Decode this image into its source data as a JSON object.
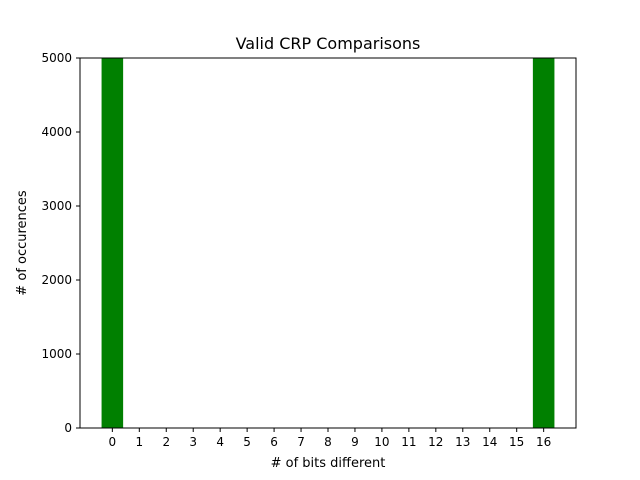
{
  "chart_data": {
    "type": "bar",
    "title": "Valid CRP Comparisons",
    "xlabel": "# of bits different",
    "ylabel": "# of occurences",
    "x": [
      0,
      1,
      2,
      3,
      4,
      5,
      6,
      7,
      8,
      9,
      10,
      11,
      12,
      13,
      14,
      15,
      16
    ],
    "values": [
      5000,
      0,
      0,
      0,
      0,
      0,
      0,
      0,
      0,
      0,
      0,
      0,
      0,
      0,
      0,
      0,
      5000
    ],
    "xticks": [
      "0",
      "1",
      "2",
      "3",
      "4",
      "5",
      "6",
      "7",
      "8",
      "9",
      "10",
      "11",
      "12",
      "13",
      "14",
      "15",
      "16"
    ],
    "yticks": [
      0,
      1000,
      2000,
      3000,
      4000,
      5000
    ],
    "xlim": [
      -1.2,
      17.2
    ],
    "ylim": [
      0,
      5000
    ],
    "bar_color": "#008000",
    "grid": false,
    "legend": false
  }
}
